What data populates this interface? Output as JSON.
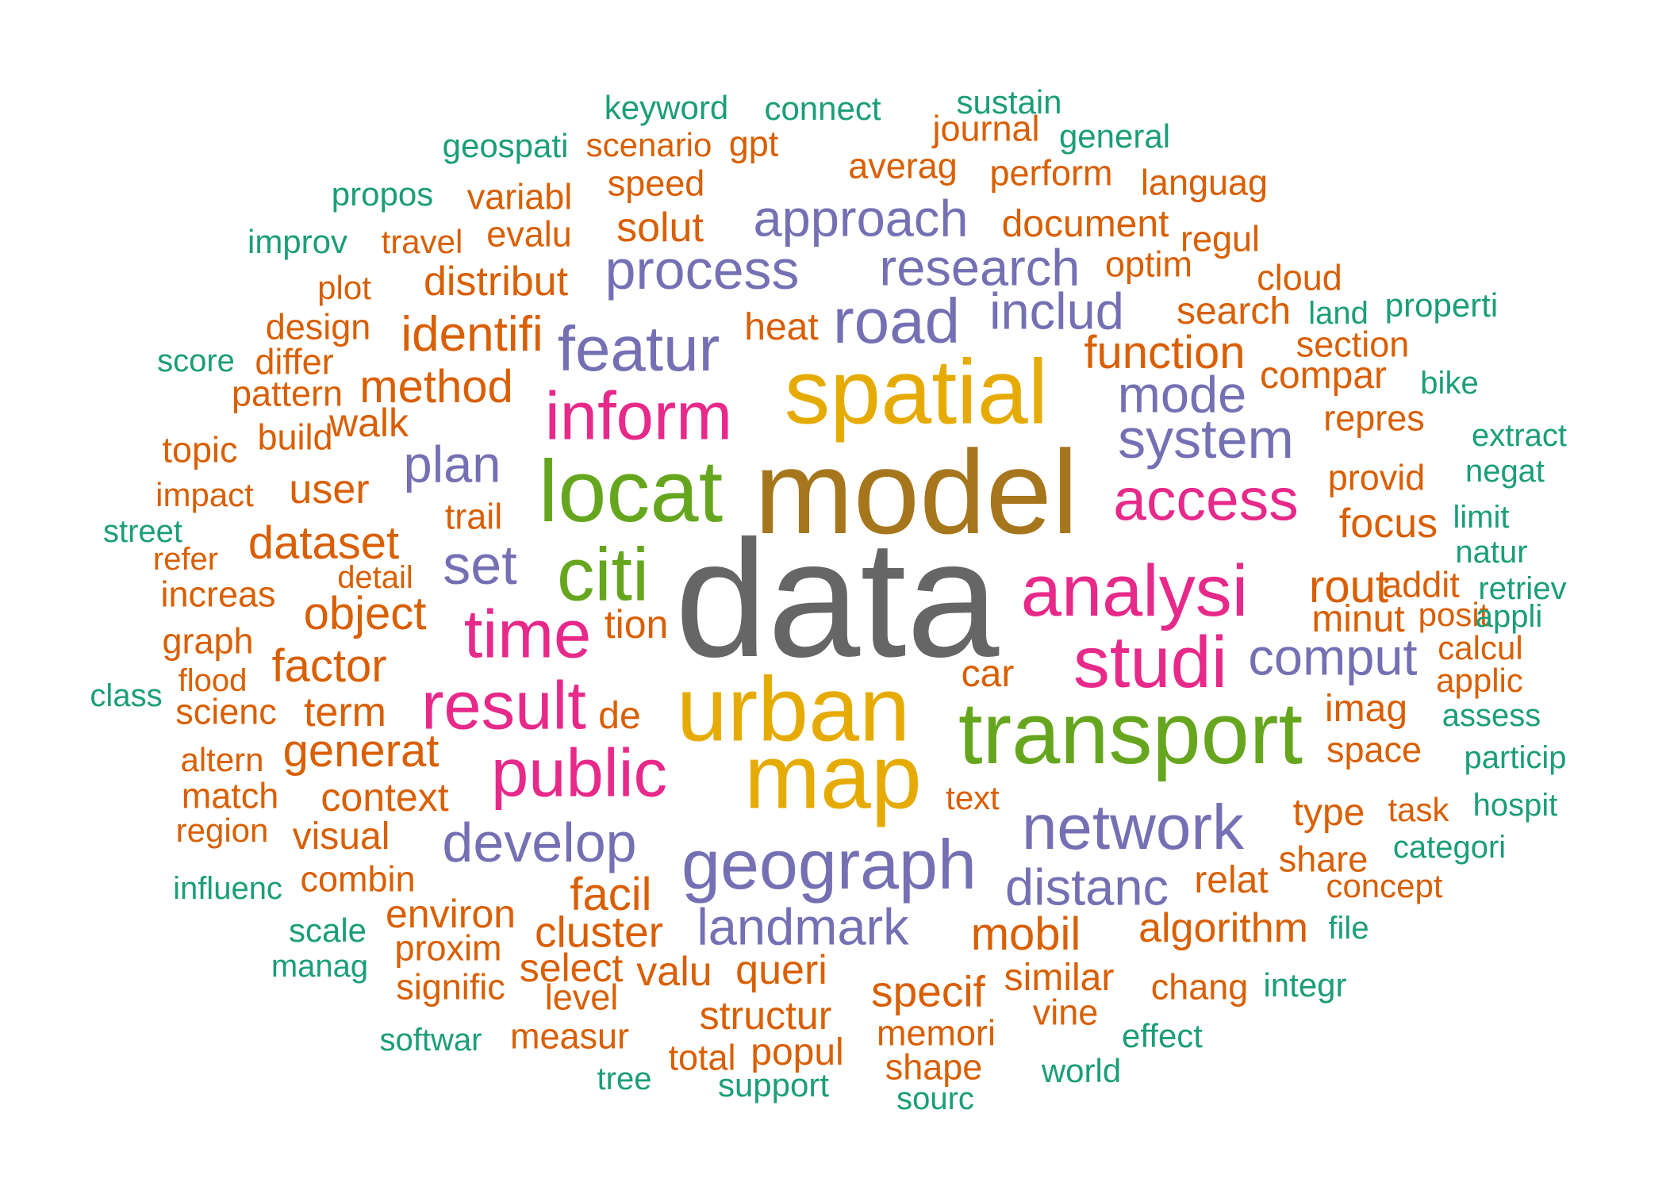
{
  "palette": {
    "teal": "#1b9e77",
    "orange": "#d95f02",
    "purple": "#7570b3",
    "pink": "#e7298a",
    "green": "#66a61e",
    "gold": "#e6ab02",
    "brown": "#a6761d",
    "gray": "#666666"
  },
  "words": [
    {
      "text": "data",
      "color": "gray"
    },
    {
      "text": "model",
      "color": "brown"
    },
    {
      "text": "spatial",
      "color": "gold"
    },
    {
      "text": "urban",
      "color": "gold"
    },
    {
      "text": "map",
      "color": "gold"
    },
    {
      "text": "transport",
      "color": "green"
    },
    {
      "text": "locat",
      "color": "green"
    },
    {
      "text": "citi",
      "color": "green"
    },
    {
      "text": "analysi",
      "color": "pink"
    },
    {
      "text": "inform",
      "color": "pink"
    },
    {
      "text": "studi",
      "color": "pink"
    },
    {
      "text": "access",
      "color": "pink"
    },
    {
      "text": "time",
      "color": "pink"
    },
    {
      "text": "result",
      "color": "pink"
    },
    {
      "text": "public",
      "color": "pink"
    },
    {
      "text": "geograph",
      "color": "purple"
    },
    {
      "text": "network",
      "color": "purple"
    },
    {
      "text": "featur",
      "color": "purple"
    },
    {
      "text": "road",
      "color": "purple"
    },
    {
      "text": "process",
      "color": "purple"
    },
    {
      "text": "approach",
      "color": "purple"
    },
    {
      "text": "research",
      "color": "purple"
    },
    {
      "text": "includ",
      "color": "purple"
    },
    {
      "text": "system",
      "color": "purple"
    },
    {
      "text": "mode",
      "color": "purple"
    },
    {
      "text": "plan",
      "color": "purple"
    },
    {
      "text": "set",
      "color": "purple"
    },
    {
      "text": "develop",
      "color": "purple"
    },
    {
      "text": "landmark",
      "color": "purple"
    },
    {
      "text": "distanc",
      "color": "purple"
    },
    {
      "text": "comput",
      "color": "purple"
    },
    {
      "text": "identifi",
      "color": "orange"
    },
    {
      "text": "method",
      "color": "orange"
    },
    {
      "text": "function",
      "color": "orange"
    },
    {
      "text": "dataset",
      "color": "orange"
    },
    {
      "text": "object",
      "color": "orange"
    },
    {
      "text": "factor",
      "color": "orange"
    },
    {
      "text": "generat",
      "color": "orange"
    },
    {
      "text": "context",
      "color": "orange"
    },
    {
      "text": "facil",
      "color": "orange"
    },
    {
      "text": "cluster",
      "color": "orange"
    },
    {
      "text": "mobil",
      "color": "orange"
    },
    {
      "text": "specif",
      "color": "orange"
    },
    {
      "text": "algorithm",
      "color": "orange"
    },
    {
      "text": "rout",
      "color": "orange"
    },
    {
      "text": "solut",
      "color": "orange"
    },
    {
      "text": "distribut",
      "color": "orange"
    },
    {
      "text": "document",
      "color": "orange"
    },
    {
      "text": "search",
      "color": "orange"
    },
    {
      "text": "compar",
      "color": "orange"
    },
    {
      "text": "focus",
      "color": "orange"
    },
    {
      "text": "provid",
      "color": "orange"
    },
    {
      "text": "user",
      "color": "orange"
    },
    {
      "text": "term",
      "color": "orange"
    },
    {
      "text": "walk",
      "color": "orange"
    },
    {
      "text": "build",
      "color": "orange"
    },
    {
      "text": "heat",
      "color": "orange"
    },
    {
      "text": "optim",
      "color": "orange"
    },
    {
      "text": "speed",
      "color": "orange"
    },
    {
      "text": "averag",
      "color": "orange"
    },
    {
      "text": "perform",
      "color": "orange"
    },
    {
      "text": "evalu",
      "color": "orange"
    },
    {
      "text": "variabl",
      "color": "orange"
    },
    {
      "text": "travel",
      "color": "orange"
    },
    {
      "text": "scenario",
      "color": "orange"
    },
    {
      "text": "gpt",
      "color": "orange"
    },
    {
      "text": "journal",
      "color": "orange"
    },
    {
      "text": "languag",
      "color": "orange"
    },
    {
      "text": "regul",
      "color": "orange"
    },
    {
      "text": "cloud",
      "color": "orange"
    },
    {
      "text": "plot",
      "color": "orange"
    },
    {
      "text": "design",
      "color": "orange"
    },
    {
      "text": "differ",
      "color": "orange"
    },
    {
      "text": "pattern",
      "color": "orange"
    },
    {
      "text": "topic",
      "color": "orange"
    },
    {
      "text": "impact",
      "color": "orange"
    },
    {
      "text": "trail",
      "color": "orange"
    },
    {
      "text": "refer",
      "color": "orange"
    },
    {
      "text": "detail",
      "color": "orange"
    },
    {
      "text": "increas",
      "color": "orange"
    },
    {
      "text": "graph",
      "color": "orange"
    },
    {
      "text": "flood",
      "color": "orange"
    },
    {
      "text": "scienc",
      "color": "orange"
    },
    {
      "text": "altern",
      "color": "orange"
    },
    {
      "text": "match",
      "color": "orange"
    },
    {
      "text": "region",
      "color": "orange"
    },
    {
      "text": "visual",
      "color": "orange"
    },
    {
      "text": "combin",
      "color": "orange"
    },
    {
      "text": "environ",
      "color": "orange"
    },
    {
      "text": "proxim",
      "color": "orange"
    },
    {
      "text": "signific",
      "color": "orange"
    },
    {
      "text": "select",
      "color": "orange"
    },
    {
      "text": "level",
      "color": "orange"
    },
    {
      "text": "valu",
      "color": "orange"
    },
    {
      "text": "queri",
      "color": "orange"
    },
    {
      "text": "structur",
      "color": "orange"
    },
    {
      "text": "measur",
      "color": "orange"
    },
    {
      "text": "total",
      "color": "orange"
    },
    {
      "text": "popul",
      "color": "orange"
    },
    {
      "text": "memori",
      "color": "orange"
    },
    {
      "text": "shape",
      "color": "orange"
    },
    {
      "text": "similar",
      "color": "orange"
    },
    {
      "text": "vine",
      "color": "orange"
    },
    {
      "text": "chang",
      "color": "orange"
    },
    {
      "text": "tion",
      "color": "orange"
    },
    {
      "text": "de",
      "color": "orange"
    },
    {
      "text": "car",
      "color": "orange"
    },
    {
      "text": "text",
      "color": "orange"
    },
    {
      "text": "section",
      "color": "orange"
    },
    {
      "text": "repres",
      "color": "orange"
    },
    {
      "text": "addit",
      "color": "orange"
    },
    {
      "text": "minut",
      "color": "orange"
    },
    {
      "text": "posit",
      "color": "orange"
    },
    {
      "text": "calcul",
      "color": "orange"
    },
    {
      "text": "applic",
      "color": "orange"
    },
    {
      "text": "imag",
      "color": "orange"
    },
    {
      "text": "space",
      "color": "orange"
    },
    {
      "text": "type",
      "color": "orange"
    },
    {
      "text": "task",
      "color": "orange"
    },
    {
      "text": "share",
      "color": "orange"
    },
    {
      "text": "concept",
      "color": "orange"
    },
    {
      "text": "relat",
      "color": "orange"
    },
    {
      "text": "keyword",
      "color": "teal"
    },
    {
      "text": "connect",
      "color": "teal"
    },
    {
      "text": "sustain",
      "color": "teal"
    },
    {
      "text": "general",
      "color": "teal"
    },
    {
      "text": "geospati",
      "color": "teal"
    },
    {
      "text": "propos",
      "color": "teal"
    },
    {
      "text": "improv",
      "color": "teal"
    },
    {
      "text": "score",
      "color": "teal"
    },
    {
      "text": "street",
      "color": "teal"
    },
    {
      "text": "class",
      "color": "teal"
    },
    {
      "text": "influenc",
      "color": "teal"
    },
    {
      "text": "scale",
      "color": "teal"
    },
    {
      "text": "manag",
      "color": "teal"
    },
    {
      "text": "softwar",
      "color": "teal"
    },
    {
      "text": "tree",
      "color": "teal"
    },
    {
      "text": "support",
      "color": "teal"
    },
    {
      "text": "sourc",
      "color": "teal"
    },
    {
      "text": "world",
      "color": "teal"
    },
    {
      "text": "effect",
      "color": "teal"
    },
    {
      "text": "integr",
      "color": "teal"
    },
    {
      "text": "file",
      "color": "teal"
    },
    {
      "text": "hospit",
      "color": "teal"
    },
    {
      "text": "categori",
      "color": "teal"
    },
    {
      "text": "particip",
      "color": "teal"
    },
    {
      "text": "assess",
      "color": "teal"
    },
    {
      "text": "appli",
      "color": "teal"
    },
    {
      "text": "retriev",
      "color": "teal"
    },
    {
      "text": "natur",
      "color": "teal"
    },
    {
      "text": "limit",
      "color": "teal"
    },
    {
      "text": "negat",
      "color": "teal"
    },
    {
      "text": "extract",
      "color": "teal"
    },
    {
      "text": "bike",
      "color": "teal"
    },
    {
      "text": "properti",
      "color": "teal"
    },
    {
      "text": "land",
      "color": "teal"
    }
  ]
}
